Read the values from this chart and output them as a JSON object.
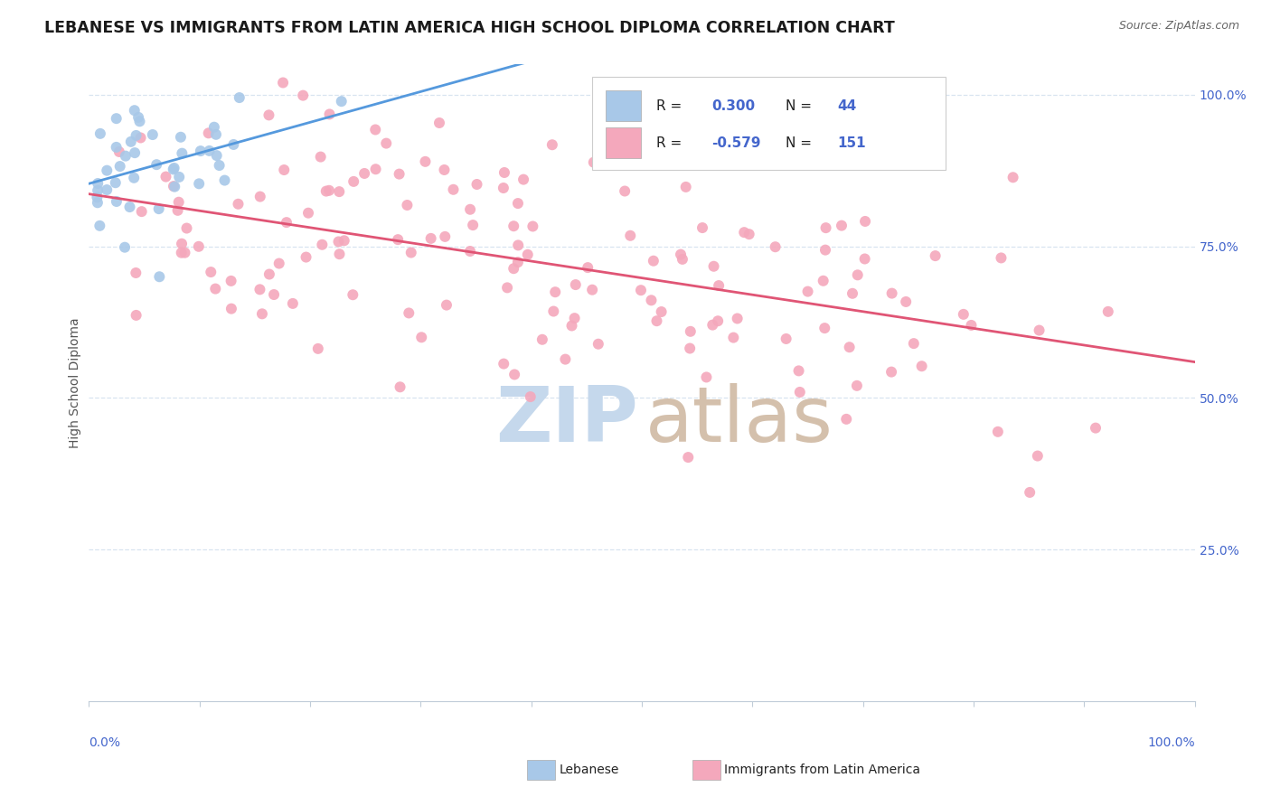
{
  "title": "LEBANESE VS IMMIGRANTS FROM LATIN AMERICA HIGH SCHOOL DIPLOMA CORRELATION CHART",
  "source": "Source: ZipAtlas.com",
  "ylabel": "High School Diploma",
  "R_blue": 0.3,
  "N_blue": 44,
  "R_pink": -0.579,
  "N_pink": 151,
  "blue_color": "#a8c8e8",
  "pink_color": "#f4a8bc",
  "blue_line_color": "#5599dd",
  "pink_line_color": "#e05575",
  "background_color": "#ffffff",
  "grid_color": "#d8e4f0",
  "title_fontsize": 12.5,
  "axis_label_fontsize": 10,
  "tick_fontsize": 10,
  "legend_fontsize": 10,
  "right_tick_color": "#4466cc",
  "bottom_tick_color": "#4466cc",
  "watermark_zip_color": "#c5d8ec",
  "watermark_atlas_color": "#d4c0ac"
}
